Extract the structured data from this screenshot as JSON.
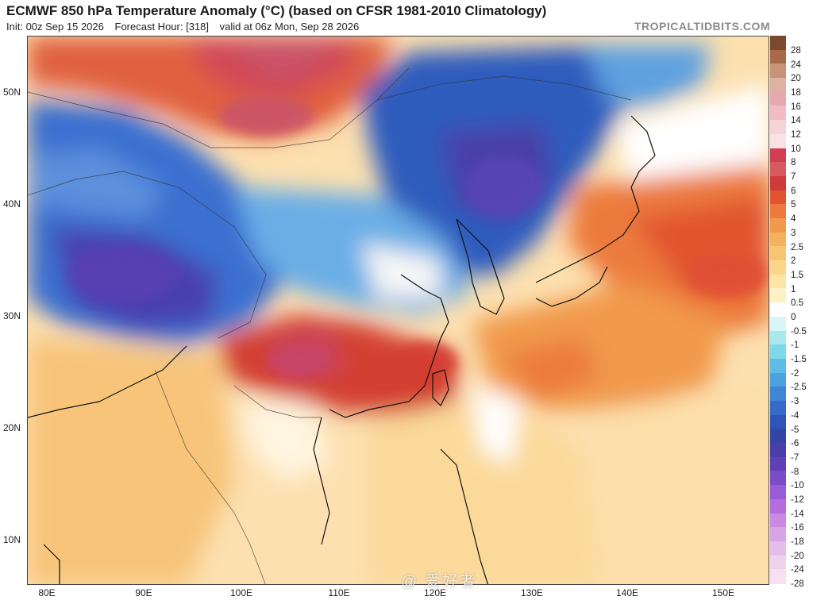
{
  "header": {
    "title": "ECMWF 850 hPa Temperature Anomaly (°C) (based on CFSR 1981-2010 Climatology)",
    "init": "Init: 00z Sep 15 2026",
    "forecast_hour": "Forecast Hour: [318]",
    "valid": "valid at 06z Mon, Sep 28 2026",
    "brand": "TROPICALTIDBITS.COM"
  },
  "map": {
    "lat_labels": [
      "50N",
      "40N",
      "30N",
      "20N",
      "10N"
    ],
    "lon_labels": [
      "80E",
      "90E",
      "100E",
      "110E",
      "120E",
      "130E",
      "140E",
      "150E"
    ]
  },
  "colorbar": {
    "labels": [
      "28",
      "24",
      "20",
      "18",
      "16",
      "14",
      "12",
      "10",
      "8",
      "7",
      "6",
      "5",
      "4",
      "3",
      "2.5",
      "2",
      "1.5",
      "1",
      "0.5",
      "0",
      "-0.5",
      "-1",
      "-1.5",
      "-2",
      "-2.5",
      "-3",
      "-4",
      "-5",
      "-6",
      "-7",
      "-8",
      "-10",
      "-12",
      "-14",
      "-16",
      "-18",
      "-20",
      "-24",
      "-28"
    ],
    "colors": [
      "#7b4a2c",
      "#a86a4a",
      "#c79478",
      "#dcb2a0",
      "#e7a9b0",
      "#f2bcc4",
      "#f6d3d7",
      "#f8e2e4",
      "#d04052",
      "#d85a5f",
      "#cf3a3a",
      "#e1542f",
      "#ec7a3c",
      "#f19a4c",
      "#f5b25c",
      "#f8c572",
      "#fad68a",
      "#fce5a5",
      "#fdf1c6",
      "#ffffff",
      "#d8f6f6",
      "#a9e9ec",
      "#7fd7e8",
      "#5ebde6",
      "#4ca2df",
      "#3f86d6",
      "#356bc7",
      "#2f55b6",
      "#3445a3",
      "#4a3fa8",
      "#6040b8",
      "#7b4cc8",
      "#9a5bd6",
      "#b56ddd",
      "#c98ae2",
      "#d9a4e6",
      "#e6bde9",
      "#f0d2ee",
      "#f6e1f2"
    ]
  },
  "watermark": "@ 爱好者"
}
